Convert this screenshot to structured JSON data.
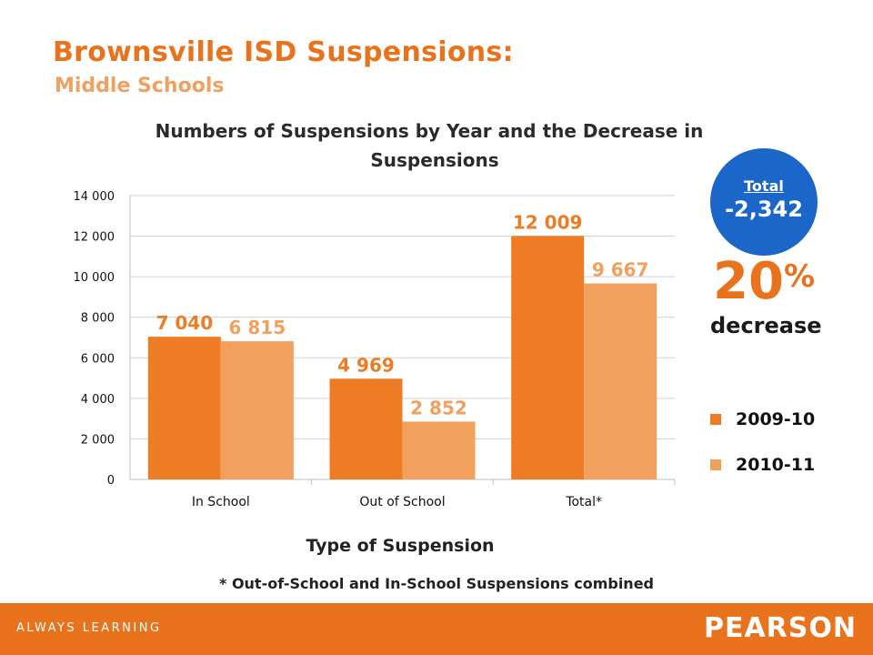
{
  "slide": {
    "title": "Brownsville ISD Suspensions:",
    "subtitle": "Middle Schools",
    "footnote": "* Out-of-School and In-School Suspensions combined"
  },
  "total_box": {
    "label": "Total",
    "value": "-2,342"
  },
  "percent": {
    "number": "20",
    "sign": "%",
    "word": "decrease"
  },
  "footer": {
    "tagline": "ALWAYS LEARNING",
    "logo": "PEARSON"
  },
  "colors": {
    "accent": "#e8731c",
    "series_2009_10": "#ee7c25",
    "series_2010_11": "#f2a05d",
    "circle": "#1a67c9"
  },
  "chart_data": {
    "type": "bar",
    "title": "Numbers of Suspensions by Year and the Decrease in Suspensions",
    "xlabel": "Type of Suspension",
    "ylabel": "",
    "categories": [
      "In School",
      "Out of School",
      "Total*"
    ],
    "series": [
      {
        "name": "2009-10",
        "values": [
          7040,
          4969,
          12009
        ],
        "labels": [
          "7 040",
          "4 969",
          "12 009"
        ],
        "color": "#ee7c25"
      },
      {
        "name": "2010-11",
        "values": [
          6815,
          2852,
          9667
        ],
        "labels": [
          "6 815",
          "2 852",
          "9 667"
        ],
        "color": "#f2a05d"
      }
    ],
    "ylim": [
      0,
      14000
    ],
    "yticks": [
      0,
      2000,
      4000,
      6000,
      8000,
      10000,
      12000,
      14000
    ],
    "ytick_labels": [
      "0",
      "2 000",
      "4 000",
      "6 000",
      "8 000",
      "10 000",
      "12 000",
      "14 000"
    ],
    "grid": true,
    "legend": "right"
  }
}
